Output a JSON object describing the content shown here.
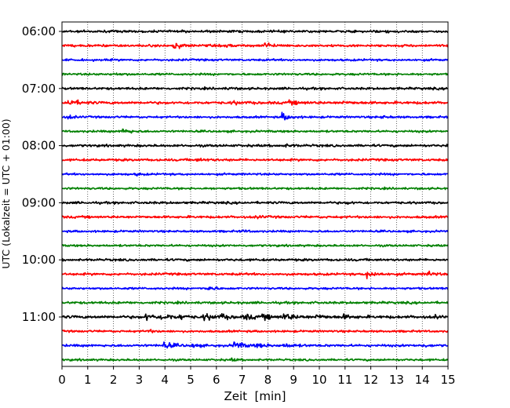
{
  "chart_data": {
    "type": "line",
    "title": "",
    "xlabel": "Zeit  [min]",
    "ylabel": "UTC (Lokalzeit = UTC + 01:00)",
    "xlim": [
      0,
      15
    ],
    "xticks": [
      0,
      1,
      2,
      3,
      4,
      5,
      6,
      7,
      8,
      9,
      10,
      11,
      12,
      13,
      14,
      15
    ],
    "xtick_labels": [
      "0",
      "1",
      "2",
      "3",
      "4",
      "5",
      "6",
      "7",
      "8",
      "9",
      "10",
      "11",
      "12",
      "13",
      "14",
      "15"
    ],
    "vertical_grid": "dotted",
    "row_interval_minutes": 15,
    "y_tick_labels": [
      {
        "label": "06:00",
        "row": 0
      },
      {
        "label": "07:00",
        "row": 4
      },
      {
        "label": "08:00",
        "row": 8
      },
      {
        "label": "09:00",
        "row": 12
      },
      {
        "label": "10:00",
        "row": 16
      },
      {
        "label": "11:00",
        "row": 20
      }
    ],
    "trace_colors": [
      "#000000",
      "#ff0000",
      "#0000ff",
      "#008000"
    ],
    "rows": [
      {
        "start": "06:00",
        "color": "#000000",
        "noise": 0.45,
        "events": [
          {
            "t": 12.6,
            "amp": 0.4,
            "dur": 0.3
          }
        ]
      },
      {
        "start": "06:15",
        "color": "#ff0000",
        "noise": 0.45,
        "events": [
          {
            "t": 4.3,
            "amp": 1.6,
            "dur": 0.6
          },
          {
            "t": 7.85,
            "amp": 1.5,
            "dur": 0.5
          },
          {
            "t": 13.7,
            "amp": 0.6,
            "dur": 0.3
          },
          {
            "t": 6.4,
            "amp": 0.4,
            "dur": 0.5
          }
        ]
      },
      {
        "start": "06:30",
        "color": "#0000ff",
        "noise": 0.4,
        "events": []
      },
      {
        "start": "06:45",
        "color": "#008000",
        "noise": 0.4,
        "events": [
          {
            "t": 2.0,
            "amp": 0.4,
            "dur": 0.5
          }
        ]
      },
      {
        "start": "07:00",
        "color": "#000000",
        "noise": 0.45,
        "events": [
          {
            "t": 6.5,
            "amp": 0.4,
            "dur": 0.3
          }
        ]
      },
      {
        "start": "07:15",
        "color": "#ff0000",
        "noise": 0.5,
        "events": [
          {
            "t": 0.2,
            "amp": 1.5,
            "dur": 0.7
          },
          {
            "t": 6.6,
            "amp": 0.5,
            "dur": 0.8
          },
          {
            "t": 8.8,
            "amp": 0.5,
            "dur": 1.0
          },
          {
            "t": 10.8,
            "amp": 0.4,
            "dur": 0.8
          }
        ]
      },
      {
        "start": "07:30",
        "color": "#0000ff",
        "noise": 0.4,
        "events": [
          {
            "t": 0.2,
            "amp": 1.2,
            "dur": 0.3
          },
          {
            "t": 8.55,
            "amp": 1.4,
            "dur": 0.6
          },
          {
            "t": 12.4,
            "amp": 0.4,
            "dur": 0.5
          }
        ]
      },
      {
        "start": "07:45",
        "color": "#008000",
        "noise": 0.4,
        "events": [
          {
            "t": 2.35,
            "amp": 1.3,
            "dur": 0.5
          }
        ]
      },
      {
        "start": "08:00",
        "color": "#000000",
        "noise": 0.45,
        "events": [
          {
            "t": 8.6,
            "amp": 0.4,
            "dur": 0.8
          },
          {
            "t": 14.95,
            "amp": 0.5,
            "dur": 0.1
          }
        ]
      },
      {
        "start": "08:15",
        "color": "#ff0000",
        "noise": 0.45,
        "events": [
          {
            "t": 5.2,
            "amp": 0.4,
            "dur": 0.8
          }
        ]
      },
      {
        "start": "08:30",
        "color": "#0000ff",
        "noise": 0.4,
        "events": [
          {
            "t": 2.9,
            "amp": 0.4,
            "dur": 0.3
          }
        ]
      },
      {
        "start": "08:45",
        "color": "#008000",
        "noise": 0.4,
        "events": []
      },
      {
        "start": "09:00",
        "color": "#000000",
        "noise": 0.45,
        "events": [
          {
            "t": 11.1,
            "amp": 0.5,
            "dur": 0.3
          }
        ]
      },
      {
        "start": "09:15",
        "color": "#ff0000",
        "noise": 0.45,
        "events": [
          {
            "t": 7.6,
            "amp": 0.5,
            "dur": 0.3
          }
        ]
      },
      {
        "start": "09:30",
        "color": "#0000ff",
        "noise": 0.4,
        "events": [
          {
            "t": 7.0,
            "amp": 0.4,
            "dur": 0.4
          }
        ]
      },
      {
        "start": "09:45",
        "color": "#008000",
        "noise": 0.4,
        "events": []
      },
      {
        "start": "10:00",
        "color": "#000000",
        "noise": 0.45,
        "events": []
      },
      {
        "start": "10:15",
        "color": "#ff0000",
        "noise": 0.45,
        "events": [
          {
            "t": 11.8,
            "amp": 1.5,
            "dur": 0.7
          },
          {
            "t": 14.2,
            "amp": 1.3,
            "dur": 0.4
          }
        ]
      },
      {
        "start": "10:30",
        "color": "#0000ff",
        "noise": 0.4,
        "events": [
          {
            "t": 5.7,
            "amp": 1.7,
            "dur": 0.3
          }
        ]
      },
      {
        "start": "10:45",
        "color": "#008000",
        "noise": 0.45,
        "events": []
      },
      {
        "start": "11:00",
        "color": "#000000",
        "noise": 0.55,
        "events": [
          {
            "t": 3.25,
            "amp": 1.3,
            "dur": 0.6
          },
          {
            "t": 3.9,
            "amp": 1.5,
            "dur": 0.6
          },
          {
            "t": 4.6,
            "amp": 0.9,
            "dur": 0.4
          },
          {
            "t": 5.5,
            "amp": 1.2,
            "dur": 0.8
          },
          {
            "t": 6.2,
            "amp": 0.8,
            "dur": 0.5
          },
          {
            "t": 7.1,
            "amp": 1.0,
            "dur": 0.7
          },
          {
            "t": 7.8,
            "amp": 0.9,
            "dur": 0.6
          },
          {
            "t": 8.6,
            "amp": 1.3,
            "dur": 0.8
          },
          {
            "t": 9.9,
            "amp": 0.8,
            "dur": 0.5
          },
          {
            "t": 10.9,
            "amp": 0.8,
            "dur": 0.5
          },
          {
            "t": 14.55,
            "amp": 1.2,
            "dur": 0.1
          }
        ]
      },
      {
        "start": "11:15",
        "color": "#ff0000",
        "noise": 0.4,
        "events": [
          {
            "t": 3.3,
            "amp": 0.6,
            "dur": 0.4
          }
        ]
      },
      {
        "start": "11:30",
        "color": "#0000ff",
        "noise": 0.45,
        "events": [
          {
            "t": 3.95,
            "amp": 1.3,
            "dur": 0.7
          },
          {
            "t": 5.1,
            "amp": 1.0,
            "dur": 0.3
          },
          {
            "t": 6.65,
            "amp": 1.4,
            "dur": 0.8
          },
          {
            "t": 7.6,
            "amp": 0.8,
            "dur": 0.6
          },
          {
            "t": 8.6,
            "amp": 0.7,
            "dur": 0.8
          },
          {
            "t": 14.0,
            "amp": 0.5,
            "dur": 0.4
          }
        ]
      },
      {
        "start": "11:45",
        "color": "#008000",
        "noise": 0.4,
        "events": [
          {
            "t": 6.6,
            "amp": 0.5,
            "dur": 0.3
          }
        ]
      }
    ]
  }
}
